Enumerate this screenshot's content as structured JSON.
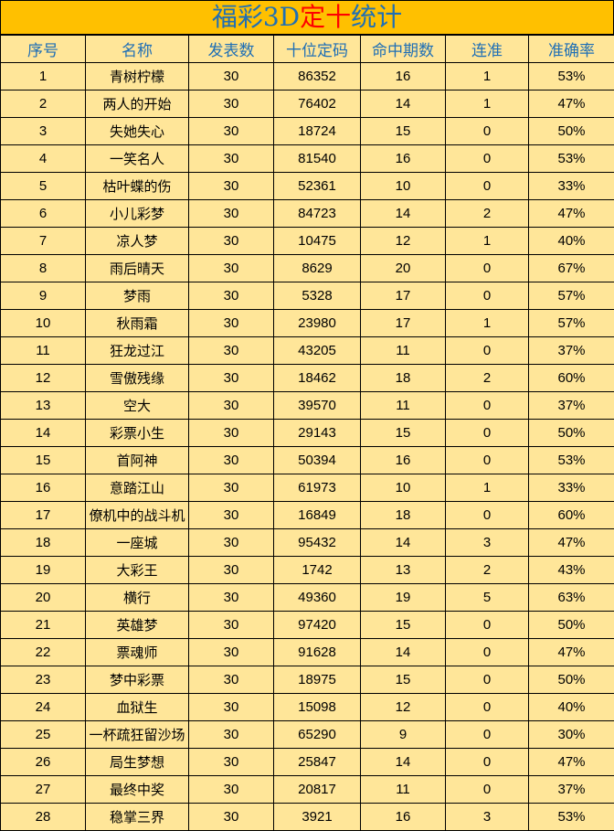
{
  "title": {
    "part1": "福彩3D",
    "part2": "定十",
    "part3": "统计"
  },
  "colors": {
    "title_bg": "#FFC000",
    "row_bg": "#FFE699",
    "header_text": "#1F6FB5",
    "highlight": "#FF0000"
  },
  "headers": [
    "序号",
    "名称",
    "发表数",
    "十位定码",
    "命中期数",
    "连准",
    "准确率"
  ],
  "rows": [
    [
      "1",
      "青树柠檬",
      "30",
      "86352",
      "16",
      "1",
      "53%"
    ],
    [
      "2",
      "两人的开始",
      "30",
      "76402",
      "14",
      "1",
      "47%"
    ],
    [
      "3",
      "失她失心",
      "30",
      "18724",
      "15",
      "0",
      "50%"
    ],
    [
      "4",
      "一笑名人",
      "30",
      "81540",
      "16",
      "0",
      "53%"
    ],
    [
      "5",
      "枯叶蝶的伤",
      "30",
      "52361",
      "10",
      "0",
      "33%"
    ],
    [
      "6",
      "小儿彩梦",
      "30",
      "84723",
      "14",
      "2",
      "47%"
    ],
    [
      "7",
      "凉人梦",
      "30",
      "10475",
      "12",
      "1",
      "40%"
    ],
    [
      "8",
      "雨后晴天",
      "30",
      "8629",
      "20",
      "0",
      "67%"
    ],
    [
      "9",
      "梦雨",
      "30",
      "5328",
      "17",
      "0",
      "57%"
    ],
    [
      "10",
      "秋雨霜",
      "30",
      "23980",
      "17",
      "1",
      "57%"
    ],
    [
      "11",
      "狂龙过江",
      "30",
      "43205",
      "11",
      "0",
      "37%"
    ],
    [
      "12",
      "雪傲残缘",
      "30",
      "18462",
      "18",
      "2",
      "60%"
    ],
    [
      "13",
      "空大",
      "30",
      "39570",
      "11",
      "0",
      "37%"
    ],
    [
      "14",
      "彩票小生",
      "30",
      "29143",
      "15",
      "0",
      "50%"
    ],
    [
      "15",
      "首阿神",
      "30",
      "50394",
      "16",
      "0",
      "53%"
    ],
    [
      "16",
      "意踏江山",
      "30",
      "61973",
      "10",
      "1",
      "33%"
    ],
    [
      "17",
      "僚机中的战斗机",
      "30",
      "16849",
      "18",
      "0",
      "60%"
    ],
    [
      "18",
      "一座城",
      "30",
      "95432",
      "14",
      "3",
      "47%"
    ],
    [
      "19",
      "大彩王",
      "30",
      "1742",
      "13",
      "2",
      "43%"
    ],
    [
      "20",
      "横行",
      "30",
      "49360",
      "19",
      "5",
      "63%"
    ],
    [
      "21",
      "英雄梦",
      "30",
      "97420",
      "15",
      "0",
      "50%"
    ],
    [
      "22",
      "票魂师",
      "30",
      "91628",
      "14",
      "0",
      "47%"
    ],
    [
      "23",
      "梦中彩票",
      "30",
      "18975",
      "15",
      "0",
      "50%"
    ],
    [
      "24",
      "血狱生",
      "30",
      "15098",
      "12",
      "0",
      "40%"
    ],
    [
      "25",
      "一杯疏狂留沙场",
      "30",
      "65290",
      "9",
      "0",
      "30%"
    ],
    [
      "26",
      "局生梦想",
      "30",
      "25847",
      "14",
      "0",
      "47%"
    ],
    [
      "27",
      "最终中奖",
      "30",
      "20817",
      "11",
      "0",
      "37%"
    ],
    [
      "28",
      "稳掌三界",
      "30",
      "3921",
      "16",
      "3",
      "53%"
    ]
  ]
}
